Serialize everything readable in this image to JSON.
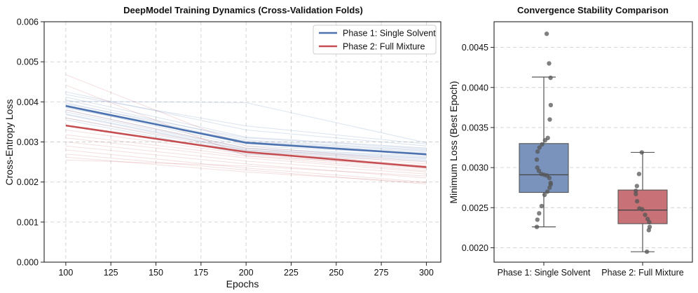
{
  "colors": {
    "phase1": "#4c72b0",
    "phase2": "#c44e52",
    "phase1_fill": "#7a93bd",
    "phase2_fill": "#c87277",
    "grid": "#d0d0d0",
    "points": "#555555"
  },
  "chart_data": [
    {
      "type": "line",
      "title": "DeepModel Training Dynamics (Cross-Validation Folds)",
      "xlabel": "Epochs",
      "ylabel": "Cross-Entropy Loss",
      "xlim": [
        88,
        308
      ],
      "ylim": [
        0,
        0.006
      ],
      "xticks": [
        100,
        125,
        150,
        175,
        200,
        225,
        250,
        275,
        300
      ],
      "xtick_labels": [
        "100",
        "125",
        "150",
        "175",
        "200",
        "225",
        "250",
        "275",
        "300"
      ],
      "yticks": [
        0,
        0.001,
        0.002,
        0.003,
        0.004,
        0.005,
        0.006
      ],
      "ytick_labels": [
        "0.000",
        "0.001",
        "0.002",
        "0.003",
        "0.004",
        "0.005",
        "0.006"
      ],
      "grid": true,
      "legend_position": "top-right",
      "series": [
        {
          "name": "Phase 1: Single Solvent",
          "x": [
            100,
            200,
            300
          ],
          "values": [
            0.0039,
            0.00298,
            0.00269
          ]
        },
        {
          "name": "Phase 2: Full Mixture",
          "x": [
            100,
            200,
            300
          ],
          "values": [
            0.00341,
            0.00275,
            0.00237
          ]
        }
      ],
      "fold_series_phase1": [
        [
          0.00425,
          0.0033,
          0.0029
        ],
        [
          0.00412,
          0.00312,
          0.00285
        ],
        [
          0.00405,
          0.00305,
          0.0028
        ],
        [
          0.00398,
          0.003,
          0.00275
        ],
        [
          0.00392,
          0.00295,
          0.00272
        ],
        [
          0.00388,
          0.0029,
          0.0027
        ],
        [
          0.0038,
          0.00285,
          0.00265
        ],
        [
          0.00375,
          0.00283,
          0.00262
        ],
        [
          0.0037,
          0.0028,
          0.0026
        ],
        [
          0.00368,
          0.00278,
          0.00258
        ],
        [
          0.0036,
          0.00275,
          0.00255
        ],
        [
          0.00355,
          0.0027,
          0.00252
        ],
        [
          0.00418,
          0.0034,
          0.00295
        ],
        [
          0.00402,
          0.00398,
          0.00298
        ],
        [
          0.00395,
          0.0031,
          0.00283
        ],
        [
          0.00385,
          0.00302,
          0.00278
        ]
      ],
      "fold_series_phase2": [
        [
          0.00468,
          0.0029,
          0.0025
        ],
        [
          0.00442,
          0.00265,
          0.0024
        ],
        [
          0.0038,
          0.00285,
          0.00245
        ],
        [
          0.0036,
          0.0028,
          0.0024
        ],
        [
          0.0034,
          0.00275,
          0.00235
        ],
        [
          0.0033,
          0.0027,
          0.00232
        ],
        [
          0.00318,
          0.00265,
          0.00228
        ],
        [
          0.0031,
          0.0026,
          0.00225
        ],
        [
          0.003,
          0.00252,
          0.0022
        ],
        [
          0.0029,
          0.00245,
          0.0021
        ],
        [
          0.0028,
          0.00235,
          0.002
        ],
        [
          0.0027,
          0.0023,
          0.00195
        ],
        [
          0.00262,
          0.00225,
          0.00198
        ],
        [
          0.00255,
          0.0024,
          0.00215
        ]
      ]
    },
    {
      "type": "box",
      "title": "Convergence Stability Comparison",
      "xlabel": "",
      "ylabel": "Minimum Loss (Best Epoch)",
      "ylim": [
        0.00182,
        0.00482
      ],
      "yticks": [
        0.002,
        0.0025,
        0.003,
        0.0035,
        0.004,
        0.0045
      ],
      "ytick_labels": [
        "0.0020",
        "0.0025",
        "0.0030",
        "0.0035",
        "0.0040",
        "0.0045"
      ],
      "categories": [
        "Phase 1: Single Solvent",
        "Phase 2: Full Mixture"
      ],
      "grid": true,
      "boxes": [
        {
          "whisker_low": 0.00226,
          "q1": 0.00269,
          "median": 0.00291,
          "q3": 0.0033,
          "whisker_high": 0.00413,
          "points": [
            0.00467,
            0.0043,
            0.00412,
            0.00378,
            0.0036,
            0.00337,
            0.00334,
            0.00329,
            0.00325,
            0.0032,
            0.0031,
            0.003,
            0.00296,
            0.00292,
            0.00291,
            0.0029,
            0.00287,
            0.00281,
            0.00279,
            0.00275,
            0.0027,
            0.00266,
            0.00252,
            0.00243,
            0.00235,
            0.00226
          ]
        },
        {
          "whisker_low": 0.00195,
          "q1": 0.0023,
          "median": 0.00247,
          "q3": 0.00272,
          "whisker_high": 0.00319,
          "points": [
            0.00319,
            0.00292,
            0.00277,
            0.00271,
            0.00267,
            0.00258,
            0.00249,
            0.00248,
            0.00241,
            0.00236,
            0.00232,
            0.00226,
            0.00222,
            0.00195
          ]
        }
      ]
    }
  ]
}
